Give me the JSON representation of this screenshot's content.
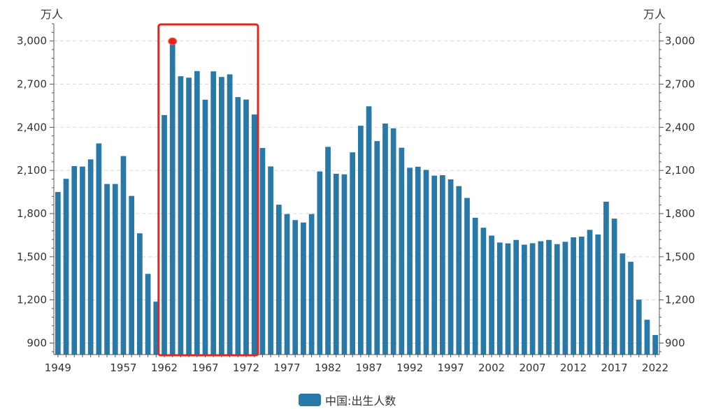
{
  "chart_data": {
    "type": "bar",
    "x": [
      1949,
      1950,
      1951,
      1952,
      1953,
      1954,
      1955,
      1956,
      1957,
      1958,
      1959,
      1960,
      1961,
      1962,
      1963,
      1964,
      1965,
      1966,
      1967,
      1968,
      1969,
      1970,
      1971,
      1972,
      1973,
      1974,
      1975,
      1976,
      1977,
      1978,
      1979,
      1980,
      1981,
      1982,
      1983,
      1984,
      1985,
      1986,
      1987,
      1988,
      1989,
      1990,
      1991,
      1992,
      1993,
      1994,
      1995,
      1996,
      1997,
      1998,
      1999,
      2000,
      2001,
      2002,
      2003,
      2004,
      2005,
      2006,
      2007,
      2008,
      2009,
      2010,
      2011,
      2012,
      2013,
      2014,
      2015,
      2016,
      2017,
      2018,
      2019,
      2020,
      2021,
      2022
    ],
    "x_tick_labels": [
      "1949",
      "1957",
      "1962",
      "1967",
      "1972",
      "1977",
      "1982",
      "1987",
      "1992",
      "1997",
      "2002",
      "2007",
      "2012",
      "2017",
      "2022"
    ],
    "series": [
      {
        "name": "中国:出生人数",
        "color": "#2878a8",
        "values": [
          1950,
          2042,
          2130,
          2127,
          2177,
          2288,
          2006,
          2006,
          2200,
          1923,
          1663,
          1381,
          1188,
          2485,
          2998,
          2755,
          2745,
          2791,
          2592,
          2789,
          2750,
          2768,
          2610,
          2593,
          2489,
          2256,
          2128,
          1862,
          1797,
          1755,
          1738,
          1797,
          2093,
          2264,
          2077,
          2073,
          2226,
          2411,
          2546,
          2304,
          2426,
          2393,
          2258,
          2119,
          2126,
          2104,
          2064,
          2067,
          2038,
          1991,
          1909,
          1771,
          1702,
          1647,
          1599,
          1593,
          1617,
          1584,
          1594,
          1608,
          1617,
          1588,
          1604,
          1635,
          1640,
          1687,
          1655,
          1883,
          1765,
          1523,
          1465,
          1202,
          1062,
          956
        ]
      }
    ],
    "y_unit_left": "万人",
    "y_unit_right": "万人",
    "ylim": [
      820,
      3120
    ],
    "y_ticks": [
      900,
      1200,
      1500,
      1800,
      2100,
      2400,
      2700,
      3000
    ],
    "y_tick_labels": [
      "900",
      "1,200",
      "1,500",
      "1,800",
      "2,100",
      "2,400",
      "2,700",
      "3,000"
    ],
    "grid": "dashed horizontal",
    "legend": "bottom-center",
    "highlight": {
      "range": [
        1962,
        1973
      ],
      "border_color": "#e8231c",
      "peak_year": 1963,
      "peak_value": 2998
    }
  }
}
